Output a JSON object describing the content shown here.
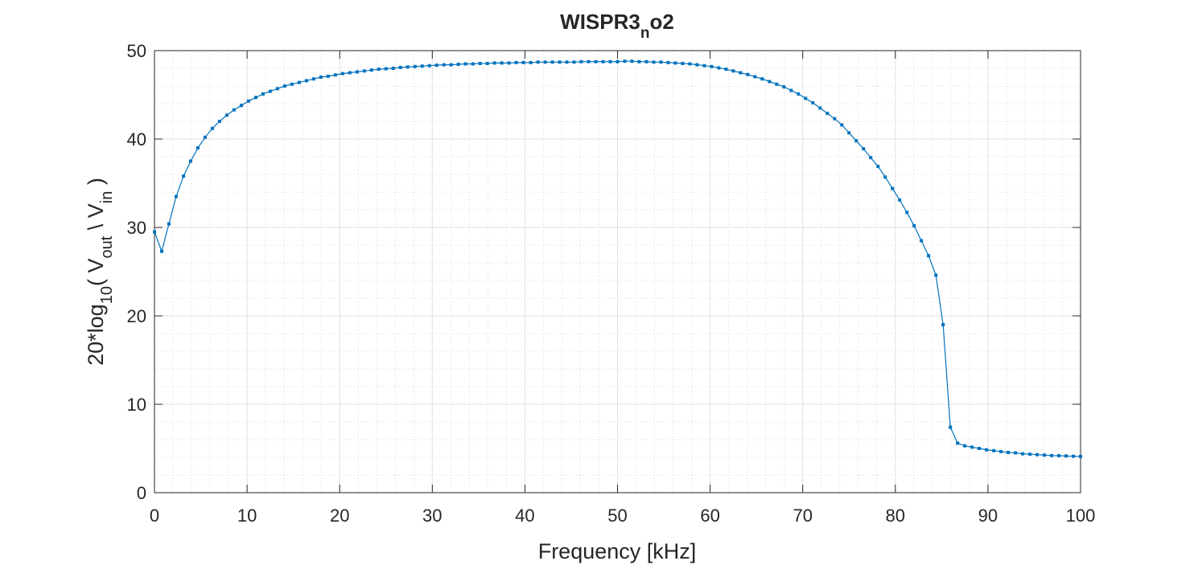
{
  "chart_data": {
    "type": "line",
    "title": [
      "WISPR3",
      "n",
      "o2"
    ],
    "xlabel": "Frequency [kHz]",
    "ylabel": [
      "20*log",
      "10",
      "( V",
      "out",
      " \\ V",
      "in",
      " )"
    ],
    "color": "#0072bd",
    "marker": "square",
    "grid": true,
    "minor_grid": true,
    "xlim": [
      0,
      100
    ],
    "ylim": [
      0,
      50
    ],
    "xticks": [
      0,
      10,
      20,
      30,
      40,
      50,
      60,
      70,
      80,
      90,
      100
    ],
    "yticks": [
      0,
      10,
      20,
      30,
      40,
      50
    ],
    "xminorticks": [
      2,
      4,
      6,
      8,
      12,
      14,
      16,
      18,
      22,
      24,
      26,
      28,
      32,
      34,
      36,
      38,
      42,
      44,
      46,
      48,
      52,
      54,
      56,
      58,
      62,
      64,
      66,
      68,
      72,
      74,
      76,
      78,
      82,
      84,
      86,
      88,
      92,
      94,
      96,
      98
    ],
    "yminorticks": [
      2,
      4,
      6,
      8,
      12,
      14,
      16,
      18,
      22,
      24,
      26,
      28,
      32,
      34,
      36,
      38,
      42,
      44,
      46,
      48
    ],
    "x": [
      0,
      0.78,
      1.56,
      2.34,
      3.13,
      3.91,
      4.69,
      5.47,
      6.25,
      7.03,
      7.81,
      8.59,
      9.38,
      10.16,
      10.94,
      11.72,
      12.5,
      13.28,
      14.06,
      14.84,
      15.63,
      16.41,
      17.19,
      17.97,
      18.75,
      19.53,
      20.31,
      21.09,
      21.88,
      22.66,
      23.44,
      24.22,
      25,
      25.78,
      26.56,
      27.34,
      28.13,
      28.91,
      29.69,
      30.47,
      31.25,
      32.03,
      32.81,
      33.59,
      34.38,
      35.16,
      35.94,
      36.72,
      37.5,
      38.28,
      39.06,
      39.84,
      40.63,
      41.41,
      42.19,
      42.97,
      43.75,
      44.53,
      45.31,
      46.09,
      46.88,
      47.66,
      48.44,
      49.22,
      50,
      50.78,
      51.56,
      52.34,
      53.13,
      53.91,
      54.69,
      55.47,
      56.25,
      57.03,
      57.81,
      58.59,
      59.38,
      60.16,
      60.94,
      61.72,
      62.5,
      63.28,
      64.06,
      64.84,
      65.63,
      66.41,
      67.19,
      67.97,
      68.75,
      69.53,
      70.31,
      71.09,
      71.88,
      72.66,
      73.44,
      74.22,
      75,
      75.78,
      76.56,
      77.34,
      78.13,
      78.91,
      79.69,
      80.47,
      81.25,
      82.03,
      82.81,
      83.59,
      84.38,
      85.16,
      85.94,
      86.72,
      87.5,
      88.28,
      89.06,
      89.84,
      90.63,
      91.41,
      92.19,
      92.97,
      93.75,
      94.53,
      95.31,
      96.09,
      96.88,
      97.66,
      98.44,
      99.22,
      100
    ],
    "values": [
      29.5,
      27.3,
      30.4,
      33.5,
      35.8,
      37.5,
      39.0,
      40.2,
      41.2,
      42.0,
      42.7,
      43.3,
      43.8,
      44.3,
      44.7,
      45.1,
      45.4,
      45.7,
      46.0,
      46.2,
      46.4,
      46.6,
      46.8,
      47.0,
      47.1,
      47.25,
      47.4,
      47.5,
      47.6,
      47.7,
      47.8,
      47.9,
      47.95,
      48.0,
      48.1,
      48.15,
      48.2,
      48.25,
      48.3,
      48.35,
      48.4,
      48.4,
      48.45,
      48.5,
      48.5,
      48.55,
      48.55,
      48.6,
      48.6,
      48.6,
      48.65,
      48.65,
      48.65,
      48.7,
      48.7,
      48.7,
      48.7,
      48.7,
      48.7,
      48.75,
      48.75,
      48.75,
      48.75,
      48.75,
      48.75,
      48.8,
      48.8,
      48.75,
      48.75,
      48.7,
      48.7,
      48.65,
      48.6,
      48.55,
      48.5,
      48.4,
      48.3,
      48.2,
      48.05,
      47.9,
      47.7,
      47.5,
      47.3,
      47.05,
      46.8,
      46.5,
      46.2,
      45.9,
      45.5,
      45.1,
      44.6,
      44.1,
      43.5,
      42.9,
      42.3,
      41.6,
      40.7,
      39.8,
      38.9,
      37.9,
      36.9,
      35.7,
      34.4,
      33.1,
      31.7,
      30.2,
      28.5,
      26.8,
      24.6,
      19.0,
      7.4,
      5.6,
      5.3,
      5.15,
      5.0,
      4.85,
      4.75,
      4.65,
      4.55,
      4.5,
      4.4,
      4.35,
      4.3,
      4.25,
      4.2,
      4.18,
      4.15,
      4.12,
      4.1
    ]
  }
}
